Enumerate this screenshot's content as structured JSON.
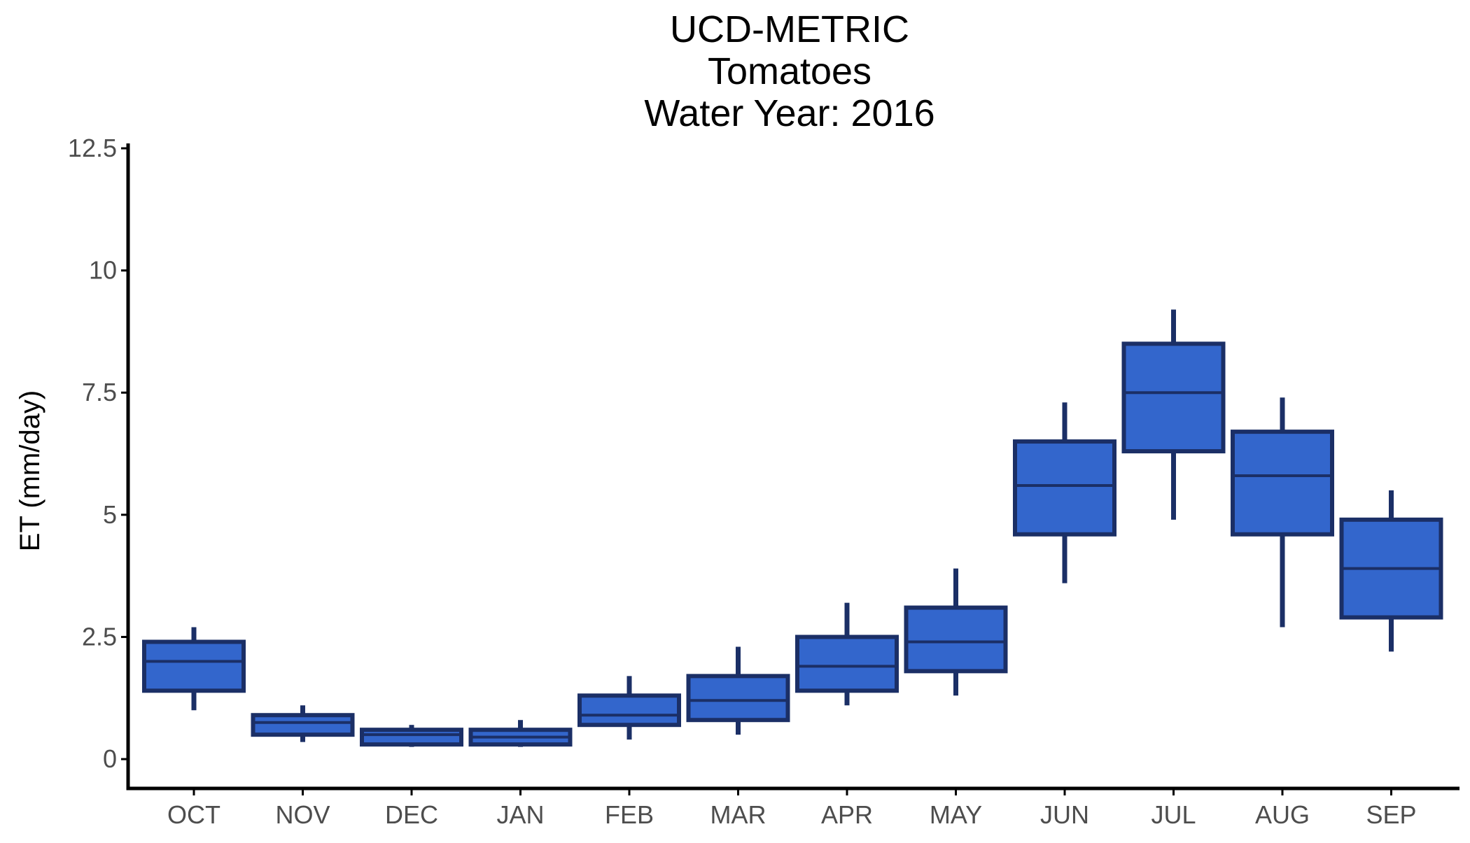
{
  "chart_data": {
    "type": "box",
    "title_lines": [
      "UCD-METRIC",
      "Tomatoes",
      "Water Year: 2016"
    ],
    "xlabel": "",
    "ylabel": "ET (mm/day)",
    "ylim": [
      -0.6,
      12.6
    ],
    "yticks": [
      0,
      2.5,
      5,
      7.5,
      10,
      12.5
    ],
    "ytick_labels": [
      "0",
      "2.5",
      "5",
      "7.5",
      "10",
      "12.5"
    ],
    "categories": [
      "OCT",
      "NOV",
      "DEC",
      "JAN",
      "FEB",
      "MAR",
      "APR",
      "MAY",
      "JUN",
      "JUL",
      "AUG",
      "SEP"
    ],
    "boxes": [
      {
        "category": "OCT",
        "whisker_low": 1.0,
        "q1": 1.4,
        "median": 2.0,
        "q3": 2.4,
        "whisker_high": 2.7
      },
      {
        "category": "NOV",
        "whisker_low": 0.35,
        "q1": 0.5,
        "median": 0.75,
        "q3": 0.9,
        "whisker_high": 1.1
      },
      {
        "category": "DEC",
        "whisker_low": 0.25,
        "q1": 0.3,
        "median": 0.5,
        "q3": 0.6,
        "whisker_high": 0.7
      },
      {
        "category": "JAN",
        "whisker_low": 0.25,
        "q1": 0.3,
        "median": 0.45,
        "q3": 0.6,
        "whisker_high": 0.8
      },
      {
        "category": "FEB",
        "whisker_low": 0.4,
        "q1": 0.7,
        "median": 0.9,
        "q3": 1.3,
        "whisker_high": 1.7
      },
      {
        "category": "MAR",
        "whisker_low": 0.5,
        "q1": 0.8,
        "median": 1.2,
        "q3": 1.7,
        "whisker_high": 2.3
      },
      {
        "category": "APR",
        "whisker_low": 1.1,
        "q1": 1.4,
        "median": 1.9,
        "q3": 2.5,
        "whisker_high": 3.2
      },
      {
        "category": "MAY",
        "whisker_low": 1.3,
        "q1": 1.8,
        "median": 2.4,
        "q3": 3.1,
        "whisker_high": 3.9
      },
      {
        "category": "JUN",
        "whisker_low": 3.6,
        "q1": 4.6,
        "median": 5.6,
        "q3": 6.5,
        "whisker_high": 7.3
      },
      {
        "category": "JUL",
        "whisker_low": 4.9,
        "q1": 6.3,
        "median": 7.5,
        "q3": 8.5,
        "whisker_high": 9.2
      },
      {
        "category": "AUG",
        "whisker_low": 2.7,
        "q1": 4.6,
        "median": 5.8,
        "q3": 6.7,
        "whisker_high": 7.4
      },
      {
        "category": "SEP",
        "whisker_low": 2.2,
        "q1": 2.9,
        "median": 3.9,
        "q3": 4.9,
        "whisker_high": 5.5
      }
    ],
    "colors": {
      "box_fill": "#3366CC",
      "box_stroke": "#1B2F66",
      "axis": "#000000",
      "tick_label": "#4d4d4d",
      "title": "#000000"
    },
    "grid": false,
    "legend": "none"
  }
}
